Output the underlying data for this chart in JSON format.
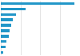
{
  "values": [
    26.4,
    8.9,
    5.5,
    4.2,
    3.8,
    3.2,
    2.8,
    2.1,
    1.6,
    0.9
  ],
  "bar_color": "#2196c8",
  "background_color": "#ffffff",
  "grid_color": "#d0d0d0",
  "xlim": [
    0,
    28
  ],
  "figsize": [
    1.0,
    0.71
  ],
  "dpi": 100
}
